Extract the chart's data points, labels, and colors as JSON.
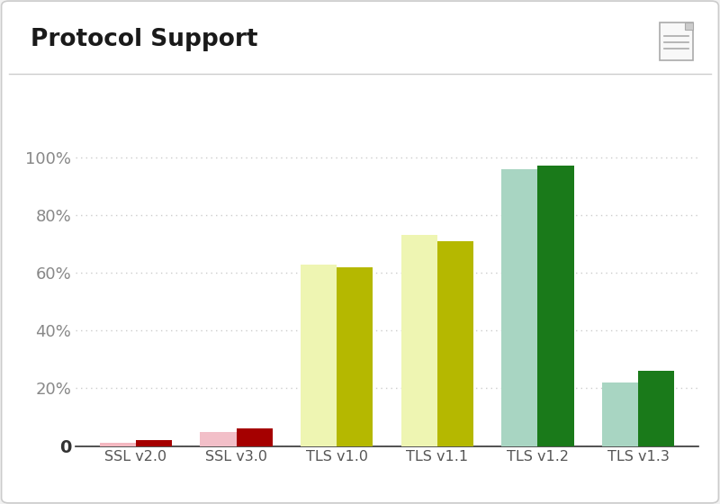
{
  "title": "Protocol Support",
  "categories": [
    "SSL v2.0",
    "SSL v3.0",
    "TLS v1.0",
    "TLS v1.1",
    "TLS v1.2",
    "TLS v1.3"
  ],
  "bar1_values": [
    1.0,
    5.0,
    63.0,
    73.0,
    96.0,
    22.0
  ],
  "bar2_values": [
    2.0,
    6.0,
    62.0,
    71.0,
    97.0,
    26.0
  ],
  "bar1_colors": [
    "#f4b8c1",
    "#f2bfc8",
    "#eef5b2",
    "#eef5b2",
    "#a8d5c2",
    "#a8d5c2"
  ],
  "bar2_colors": [
    "#a50000",
    "#a50000",
    "#b5b800",
    "#b5b800",
    "#1a7a1a",
    "#1a7a1a"
  ],
  "ylim": [
    0,
    110
  ],
  "yticks": [
    0,
    20,
    40,
    60,
    80,
    100
  ],
  "ytick_labels": [
    "0",
    "20%",
    "40%",
    "60%",
    "80%",
    "100%"
  ],
  "background_color": "#ffffff",
  "plot_bg_color": "#ffffff",
  "title_fontsize": 19,
  "bar_width": 0.36,
  "grid_color": "#cccccc",
  "border_color": "#cccccc",
  "outer_bg": "#f2f2f2",
  "card_bg": "#ffffff"
}
